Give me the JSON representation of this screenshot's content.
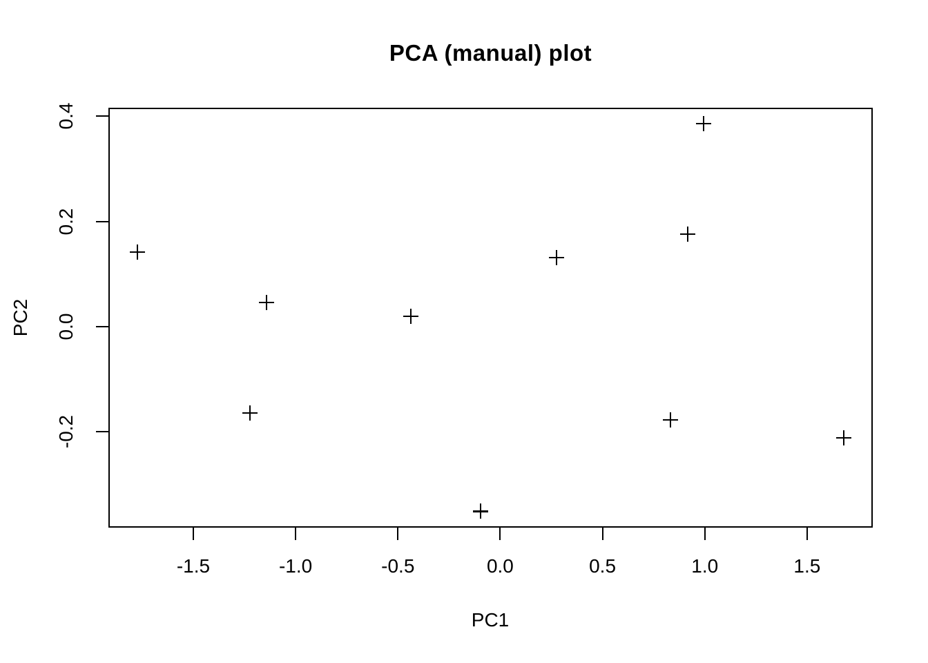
{
  "title": "PCA (manual) plot",
  "colors": {
    "foreground": "#000000",
    "background": "#ffffff"
  },
  "chart_data": {
    "type": "scatter",
    "title": "PCA (manual) plot",
    "xlabel": "PC1",
    "ylabel": "PC2",
    "marker": "plus-pch3",
    "grid": false,
    "legend": false,
    "xlim": [
      -1.915,
      1.821
    ],
    "ylim": [
      -0.382,
      0.416
    ],
    "x_ticks": [
      -1.5,
      -1.0,
      -0.5,
      0.0,
      0.5,
      1.0,
      1.5
    ],
    "x_tick_labels": [
      "-1.5",
      "-1.0",
      "-0.5",
      "0.0",
      "0.5",
      "1.0",
      "1.5"
    ],
    "y_ticks": [
      -0.2,
      0.0,
      0.2,
      0.4
    ],
    "y_tick_labels": [
      "-0.2",
      "0.0",
      "0.2",
      "0.4"
    ],
    "points": [
      {
        "x": -1.774,
        "y": 0.142
      },
      {
        "x": -1.223,
        "y": -0.164
      },
      {
        "x": -1.142,
        "y": 0.046
      },
      {
        "x": -0.437,
        "y": 0.02
      },
      {
        "x": -0.096,
        "y": -0.351
      },
      {
        "x": 0.275,
        "y": 0.131
      },
      {
        "x": 0.832,
        "y": -0.177
      },
      {
        "x": 0.916,
        "y": 0.176
      },
      {
        "x": 0.994,
        "y": 0.386
      },
      {
        "x": 1.679,
        "y": -0.211
      }
    ]
  }
}
